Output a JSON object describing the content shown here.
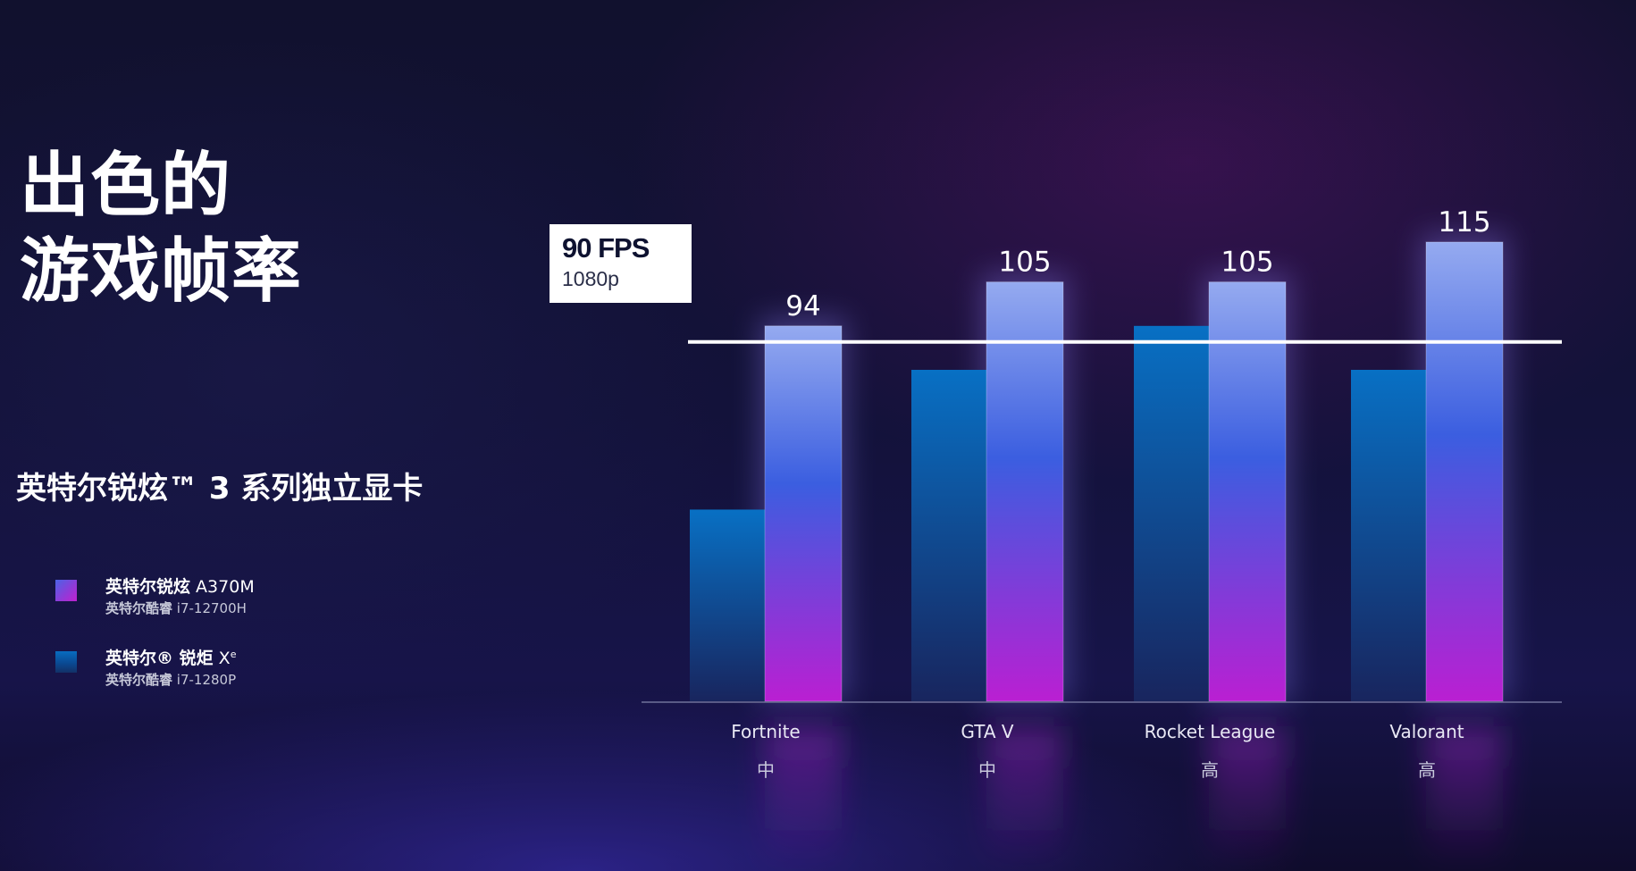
{
  "title": {
    "line1": "出色的",
    "line2": "游戏帧率"
  },
  "subtitle": "英特尔锐炫™ 3 系列独立显卡",
  "legend": [
    {
      "name_bold": "英特尔锐炫",
      "name_rest": " A370M",
      "cpu_bold": "英特尔酷睿",
      "cpu_rest": " i7-12700H",
      "color": "#7a45dd"
    },
    {
      "name_bold": "英特尔® 锐炬",
      "name_rest": " X",
      "name_sup": "e",
      "cpu_bold": "英特尔酷睿",
      "cpu_rest": " i7-1280P",
      "color": "#0a5ba8"
    }
  ],
  "reference_line": {
    "value": 90,
    "label": "90 FPS",
    "sublabel": "1080p",
    "color": "#ffffff"
  },
  "colors": {
    "arc_top": "#95aaf0",
    "arc_mid": "#3b5ee0",
    "arc_bottom": "#ba1fd2",
    "xe_top": "#0870c4",
    "xe_bottom": "#18255e",
    "background": "#12123a"
  },
  "chart_data": {
    "type": "bar",
    "title": "",
    "xlabel": "",
    "ylabel": "",
    "ylim": [
      0,
      130
    ],
    "grid": false,
    "legend_position": "left",
    "categories": [
      "Fortnite",
      "GTA V",
      "Rocket League",
      "Valorant"
    ],
    "settings": [
      "中",
      "中",
      "高",
      "高"
    ],
    "series": [
      {
        "name": "英特尔® 锐炬 Xe",
        "values": [
          48,
          83,
          94,
          83
        ],
        "show_labels": false
      },
      {
        "name": "英特尔锐炫 A370M",
        "values": [
          94,
          105,
          105,
          115
        ],
        "show_labels": true
      }
    ]
  }
}
